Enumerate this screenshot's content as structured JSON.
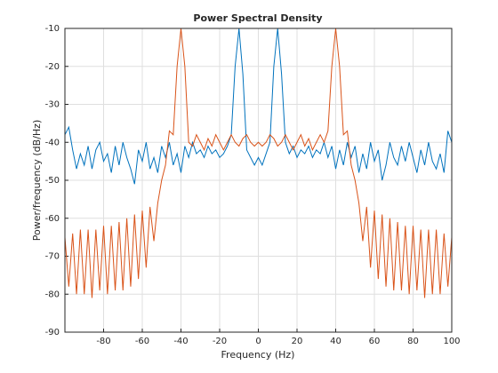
{
  "chart_data": {
    "type": "line",
    "title": "Power Spectral Density",
    "x_label": "Frequency (Hz)",
    "y_label": "Power/frequency (dB/Hz)",
    "x": [
      -100,
      -98,
      -96,
      -94,
      -92,
      -90,
      -88,
      -86,
      -84,
      -82,
      -80,
      -78,
      -76,
      -74,
      -72,
      -70,
      -68,
      -66,
      -64,
      -62,
      -60,
      -58,
      -56,
      -54,
      -52,
      -50,
      -48,
      -46,
      -44,
      -42,
      -40,
      -38,
      -36,
      -34,
      -32,
      -30,
      -28,
      -26,
      -24,
      -22,
      -20,
      -18,
      -16,
      -14,
      -12,
      -10,
      -8,
      -6,
      -4,
      -2,
      0,
      2,
      4,
      6,
      8,
      10,
      12,
      14,
      16,
      18,
      20,
      22,
      24,
      26,
      28,
      30,
      32,
      34,
      36,
      38,
      40,
      42,
      44,
      46,
      48,
      50,
      52,
      54,
      56,
      58,
      60,
      62,
      64,
      66,
      68,
      70,
      72,
      74,
      76,
      78,
      80,
      82,
      84,
      86,
      88,
      90,
      92,
      94,
      96,
      98,
      100
    ],
    "series": [
      {
        "color": "#0072BD",
        "values": [
          -38,
          -36,
          -42,
          -47,
          -43,
          -46,
          -41,
          -47,
          -42,
          -40,
          -45,
          -43,
          -48,
          -41,
          -46,
          -40,
          -44,
          -47,
          -51,
          -42,
          -45,
          -40,
          -47,
          -44,
          -48,
          -41,
          -44,
          -40,
          -46,
          -43,
          -48,
          -41,
          -44,
          -40,
          -43,
          -42,
          -44,
          -41,
          -43,
          -42,
          -44,
          -43,
          -41,
          -38,
          -20,
          -10,
          -22,
          -42,
          -44,
          -46,
          -44,
          -46,
          -43,
          -40,
          -20,
          -10,
          -22,
          -40,
          -43,
          -41,
          -44,
          -42,
          -43,
          -41,
          -44,
          -42,
          -43,
          -40,
          -44,
          -41,
          -47,
          -42,
          -46,
          -40,
          -44,
          -41,
          -48,
          -43,
          -47,
          -40,
          -45,
          -42,
          -50,
          -46,
          -40,
          -44,
          -46,
          -41,
          -45,
          -40,
          -44,
          -48,
          -42,
          -46,
          -40,
          -45,
          -47,
          -43,
          -48,
          -37,
          -40
        ]
      },
      {
        "color": "#D95319",
        "values": [
          -65,
          -78,
          -64,
          -80,
          -63,
          -80,
          -63,
          -81,
          -63,
          -79,
          -62,
          -80,
          -62,
          -79,
          -61,
          -79,
          -60,
          -78,
          -59,
          -76,
          -58,
          -73,
          -57,
          -66,
          -56,
          -50,
          -46,
          -37,
          -38,
          -20,
          -10,
          -20,
          -40,
          -41,
          -38,
          -40,
          -42,
          -39,
          -41,
          -38,
          -40,
          -42,
          -40,
          -38,
          -40,
          -41,
          -39,
          -38,
          -40,
          -41,
          -40,
          -41,
          -40,
          -38,
          -39,
          -41,
          -40,
          -38,
          -40,
          -42,
          -40,
          -38,
          -41,
          -39,
          -42,
          -40,
          -38,
          -40,
          -37,
          -20,
          -10,
          -20,
          -38,
          -37,
          -46,
          -50,
          -56,
          -66,
          -57,
          -73,
          -58,
          -76,
          -59,
          -78,
          -60,
          -79,
          -61,
          -79,
          -62,
          -80,
          -62,
          -79,
          -63,
          -81,
          -63,
          -80,
          -63,
          -80,
          -64,
          -78,
          -65
        ]
      }
    ],
    "xlim": [
      -100,
      100
    ],
    "xticks": [
      -80,
      -60,
      -40,
      -20,
      0,
      20,
      40,
      60,
      80,
      100
    ],
    "ylim": [
      -90,
      -10
    ],
    "yticks": [
      -90,
      -80,
      -70,
      -60,
      -50,
      -40,
      -30,
      -20,
      -10
    ],
    "grid": true
  }
}
